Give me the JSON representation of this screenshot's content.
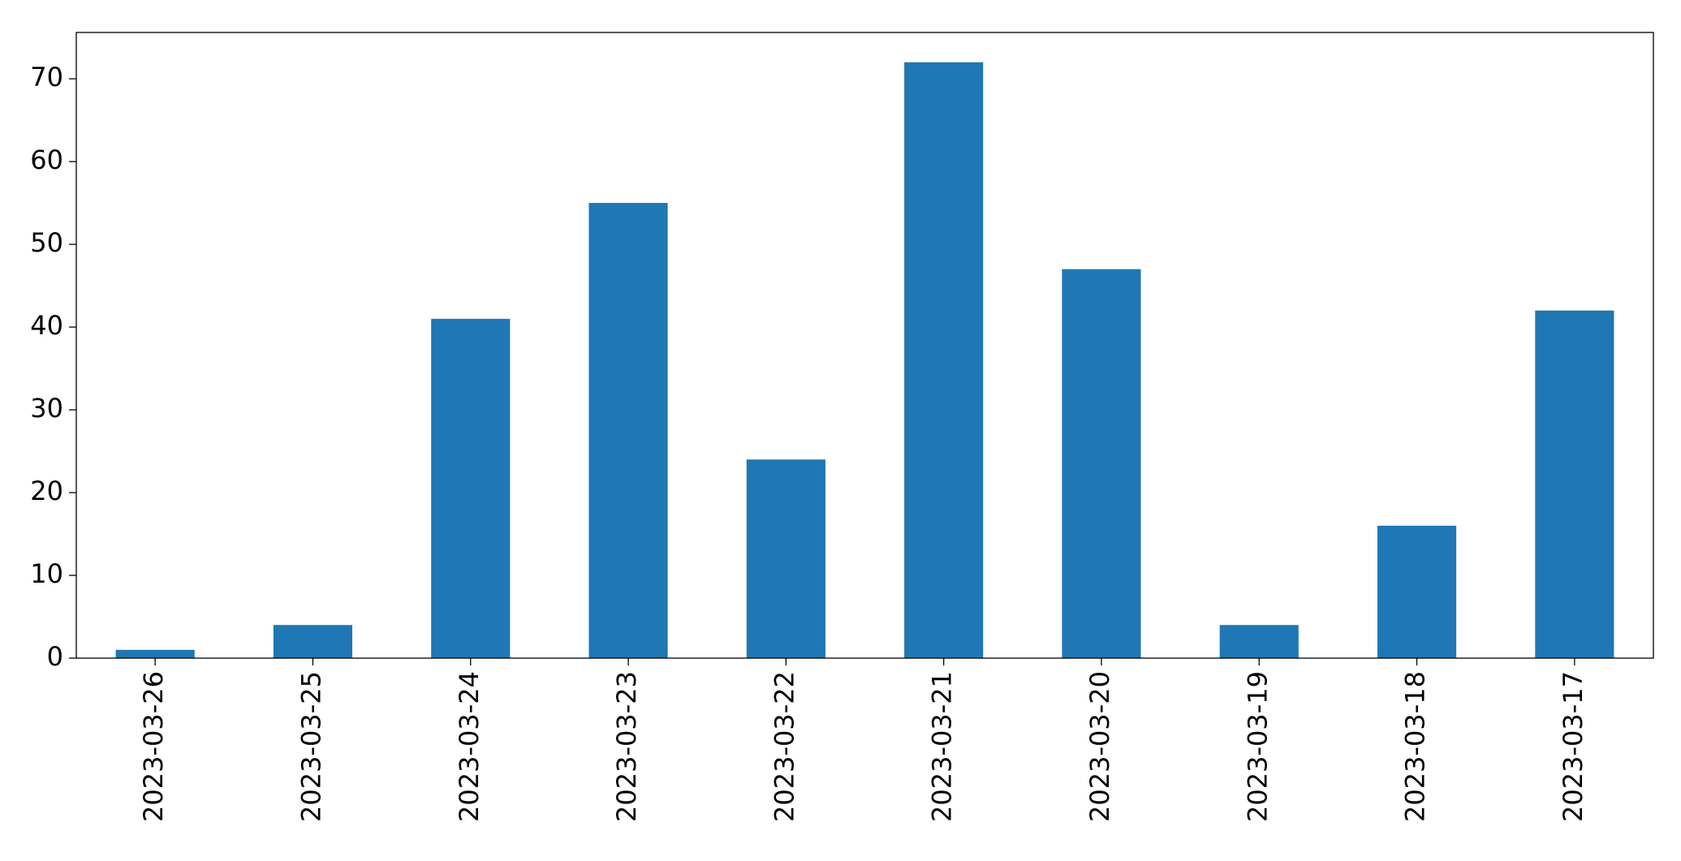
{
  "chart_data": {
    "type": "bar",
    "categories": [
      "2023-03-26",
      "2023-03-25",
      "2023-03-24",
      "2023-03-23",
      "2023-03-22",
      "2023-03-21",
      "2023-03-20",
      "2023-03-19",
      "2023-03-18",
      "2023-03-17"
    ],
    "values": [
      1,
      4,
      41,
      55,
      24,
      72,
      47,
      4,
      16,
      42
    ],
    "color": "#1f77b4",
    "ylim": [
      0,
      75.6
    ],
    "yticks": [
      0,
      10,
      20,
      30,
      40,
      50,
      60,
      70
    ],
    "grid": false
  }
}
